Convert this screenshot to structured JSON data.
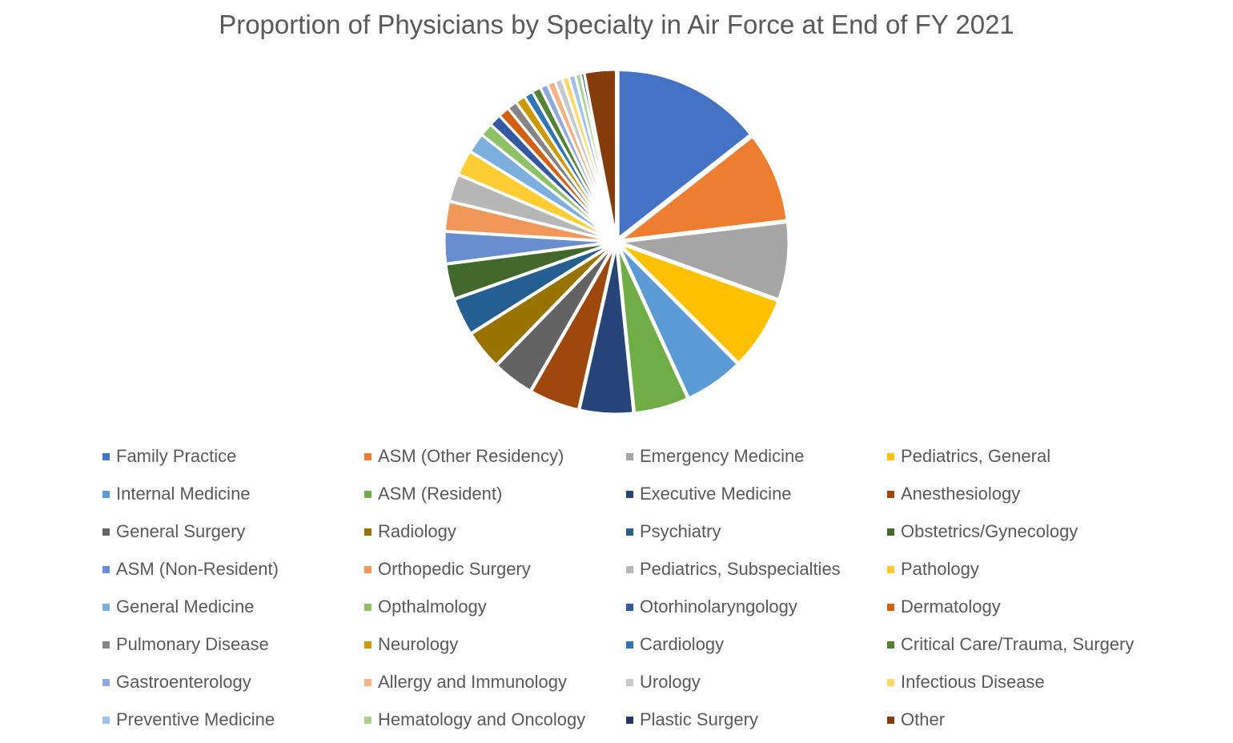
{
  "chart_data": {
    "type": "pie",
    "title": "Proportion of Physicians by Specialty in Air Force at End of FY 2021",
    "legend_position": "bottom",
    "slices": [
      {
        "label": "Family Practice",
        "value": 13.8,
        "color": "#4472C4"
      },
      {
        "label": "ASM (Other Residency)",
        "value": 8.3,
        "color": "#ED7D31"
      },
      {
        "label": "Emergency Medicine",
        "value": 7.1,
        "color": "#A5A5A5"
      },
      {
        "label": "Pediatrics, General",
        "value": 6.7,
        "color": "#FFC000"
      },
      {
        "label": "Internal Medicine",
        "value": 5.4,
        "color": "#5B9BD5"
      },
      {
        "label": "ASM (Resident)",
        "value": 5.0,
        "color": "#70AD47"
      },
      {
        "label": "Executive Medicine",
        "value": 4.9,
        "color": "#264478"
      },
      {
        "label": "Anesthesiology",
        "value": 4.6,
        "color": "#9E480E"
      },
      {
        "label": "General Surgery",
        "value": 3.8,
        "color": "#636363"
      },
      {
        "label": "Radiology",
        "value": 3.6,
        "color": "#997300"
      },
      {
        "label": "Psychiatry",
        "value": 3.4,
        "color": "#255E91"
      },
      {
        "label": "Obstetrics/Gynecology",
        "value": 3.2,
        "color": "#43682B"
      },
      {
        "label": "ASM (Non-Resident)",
        "value": 2.9,
        "color": "#698ED0"
      },
      {
        "label": "Orthopedic Surgery",
        "value": 2.7,
        "color": "#F1975A"
      },
      {
        "label": "Pediatrics, Subspecialties",
        "value": 2.5,
        "color": "#B7B7B7"
      },
      {
        "label": "Pathology",
        "value": 2.3,
        "color": "#FFCD33"
      },
      {
        "label": "General Medicine",
        "value": 1.8,
        "color": "#7CAFDD"
      },
      {
        "label": "Opthalmology",
        "value": 1.2,
        "color": "#8CC168"
      },
      {
        "label": "Otorhinolaryngology",
        "value": 1.1,
        "color": "#335AA1"
      },
      {
        "label": "Dermatology",
        "value": 1.0,
        "color": "#D26012"
      },
      {
        "label": "Pulmonary Disease",
        "value": 0.9,
        "color": "#848484"
      },
      {
        "label": "Neurology",
        "value": 0.9,
        "color": "#CC9A00"
      },
      {
        "label": "Cardiology",
        "value": 0.8,
        "color": "#2E75B6"
      },
      {
        "label": "Critical Care/Trauma, Surgery",
        "value": 0.8,
        "color": "#548235"
      },
      {
        "label": "Gastroenterology",
        "value": 0.7,
        "color": "#8FAADC"
      },
      {
        "label": "Allergy and Immunology",
        "value": 0.7,
        "color": "#F4B183"
      },
      {
        "label": "Urology",
        "value": 0.7,
        "color": "#C9C9C9"
      },
      {
        "label": "Infectious Disease",
        "value": 0.6,
        "color": "#FFD966"
      },
      {
        "label": "Preventive Medicine",
        "value": 0.6,
        "color": "#9DC3E6"
      },
      {
        "label": "Hematology and Oncology",
        "value": 0.5,
        "color": "#A9D18E"
      },
      {
        "label": "Plastic Surgery",
        "value": 0.3,
        "color": "#1F3864"
      },
      {
        "label": "Other",
        "value": 2.9,
        "color": "#843C0C"
      }
    ]
  }
}
